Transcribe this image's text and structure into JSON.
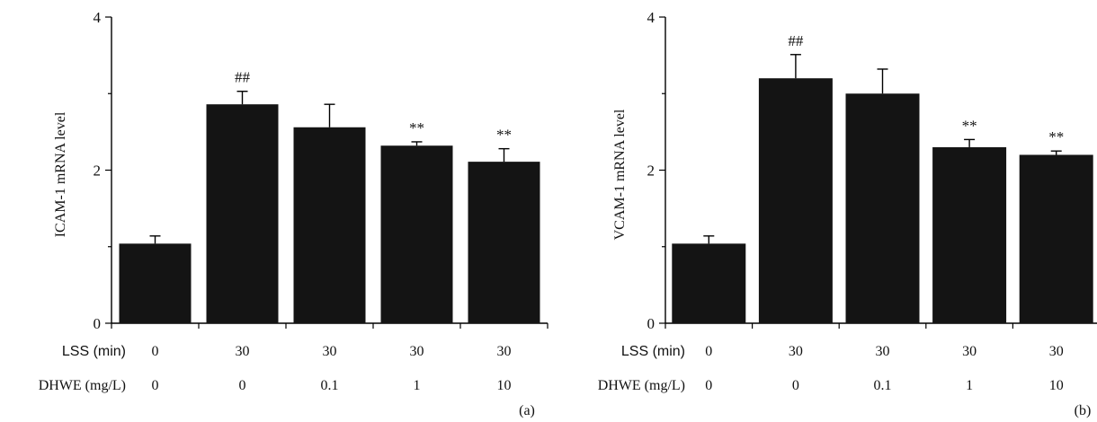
{
  "chart_data": [
    {
      "type": "bar",
      "panel_label": "(a)",
      "ylabel": "ICAM-1 mRNA level",
      "ylim": [
        0,
        4
      ],
      "yticks": [
        "0",
        "2",
        "4"
      ],
      "row_labels": [
        "LSS (min)",
        "DHWE (mg/L)"
      ],
      "categories": [
        {
          "lss": "0",
          "dhwe": "0"
        },
        {
          "lss": "30",
          "dhwe": "0"
        },
        {
          "lss": "30",
          "dhwe": "0.1"
        },
        {
          "lss": "30",
          "dhwe": "1"
        },
        {
          "lss": "30",
          "dhwe": "10"
        }
      ],
      "values": [
        1.04,
        2.86,
        2.56,
        2.32,
        2.11
      ],
      "errors": [
        0.1,
        0.17,
        0.3,
        0.05,
        0.17
      ],
      "annotations": [
        "",
        "##",
        "",
        "**",
        "**"
      ]
    },
    {
      "type": "bar",
      "panel_label": "(b)",
      "ylabel": "VCAM-1 mRNA level",
      "ylim": [
        0,
        4
      ],
      "yticks": [
        "0",
        "2",
        "4"
      ],
      "row_labels": [
        "LSS (min)",
        "DHWE (mg/L)"
      ],
      "categories": [
        {
          "lss": "0",
          "dhwe": "0"
        },
        {
          "lss": "30",
          "dhwe": "0"
        },
        {
          "lss": "30",
          "dhwe": "0.1"
        },
        {
          "lss": "30",
          "dhwe": "1"
        },
        {
          "lss": "30",
          "dhwe": "10"
        }
      ],
      "values": [
        1.04,
        3.2,
        3.0,
        2.3,
        2.2
      ],
      "errors": [
        0.1,
        0.31,
        0.32,
        0.1,
        0.05
      ],
      "annotations": [
        "",
        "##",
        "",
        "**",
        "**"
      ]
    }
  ],
  "colors": {
    "bar": "#141414",
    "axis": "#000000"
  }
}
